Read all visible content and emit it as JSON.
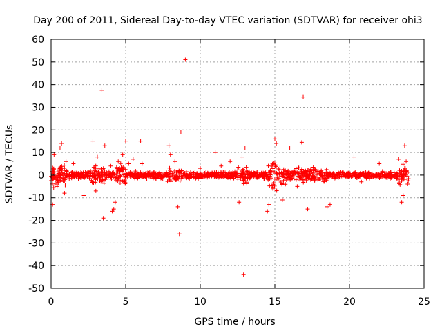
{
  "chart_data": {
    "type": "scatter",
    "title": "Day 200 of 2011, Sidereal Day-to-day VTEC variation (SDTVAR) for receiver ohi3",
    "xlabel": "GPS time / hours",
    "ylabel": "SDTVAR / TECUs",
    "xlim": [
      0,
      25
    ],
    "ylim": [
      -50,
      60
    ],
    "xticks": [
      "0",
      "5",
      "10",
      "15",
      "20",
      "25"
    ],
    "yticks": [
      "60",
      "50",
      "40",
      "30",
      "20",
      "10",
      "0",
      "-10",
      "-20",
      "-30",
      "-40",
      "-50"
    ],
    "grid": true,
    "marker": "+",
    "series": [
      {
        "name": "SDTVAR",
        "color": "#ff0000",
        "x": [
          0.1,
          0.2,
          0.4,
          0.6,
          0.7,
          0.9,
          1.0,
          1.5,
          2.2,
          2.8,
          3.0,
          3.1,
          3.4,
          3.5,
          3.6,
          4.0,
          4.1,
          4.2,
          4.3,
          4.5,
          4.8,
          5.0,
          5.2,
          5.5,
          6.0,
          6.1,
          7.9,
          8.0,
          8.3,
          8.5,
          8.6,
          8.7,
          9.0,
          10.0,
          11.0,
          11.4,
          12.0,
          12.6,
          12.8,
          12.9,
          13.0,
          14.5,
          14.6,
          15.0,
          15.1,
          15.5,
          16.0,
          16.5,
          16.8,
          16.9,
          17.2,
          18.5,
          18.7,
          20.3,
          20.8,
          22.0,
          23.3,
          23.5,
          23.6,
          23.7,
          23.8,
          23.9
        ],
        "y": [
          -13,
          9,
          -5,
          12,
          14,
          -8,
          6,
          5,
          -9,
          15,
          -7,
          8,
          37.5,
          -19,
          13,
          4,
          -16,
          -15,
          -12,
          6,
          9,
          15,
          5,
          7,
          15,
          5,
          13,
          9,
          6,
          -14,
          -26,
          19,
          51,
          3,
          10,
          4,
          6,
          -12,
          8,
          -44,
          12,
          -16,
          -13,
          16,
          14,
          -11,
          12,
          -5,
          14.5,
          34.5,
          -15,
          -14,
          -13,
          8,
          -3,
          5,
          7,
          -12,
          -9,
          13,
          6,
          -4
        ]
      }
    ]
  }
}
